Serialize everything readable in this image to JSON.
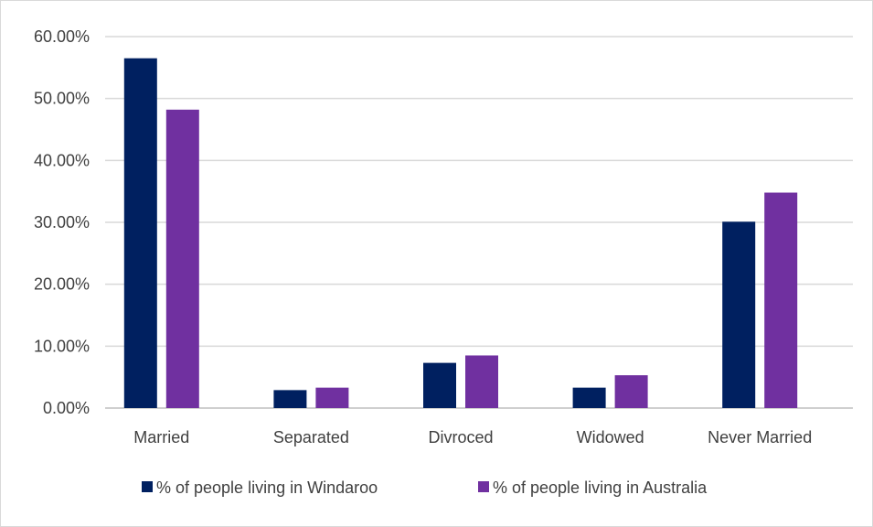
{
  "chart_data": {
    "type": "bar",
    "categories": [
      "Married",
      "Separated",
      "Divroced",
      "Widowed",
      "Never Married"
    ],
    "series": [
      {
        "name": "% of people living in Windaroo",
        "color": "#002060",
        "values": [
          56.5,
          2.9,
          7.3,
          3.3,
          30.1
        ]
      },
      {
        "name": "% of people living in Australia",
        "color": "#7030A0",
        "values": [
          48.2,
          3.3,
          8.5,
          5.3,
          34.8
        ]
      }
    ],
    "ylim": [
      0,
      60
    ],
    "yticks": [
      "0.00%",
      "10.00%",
      "20.00%",
      "30.00%",
      "40.00%",
      "50.00%",
      "60.00%"
    ],
    "ytick_values": [
      0,
      10,
      20,
      30,
      40,
      50,
      60
    ],
    "grid": true,
    "legend_position": "bottom"
  }
}
